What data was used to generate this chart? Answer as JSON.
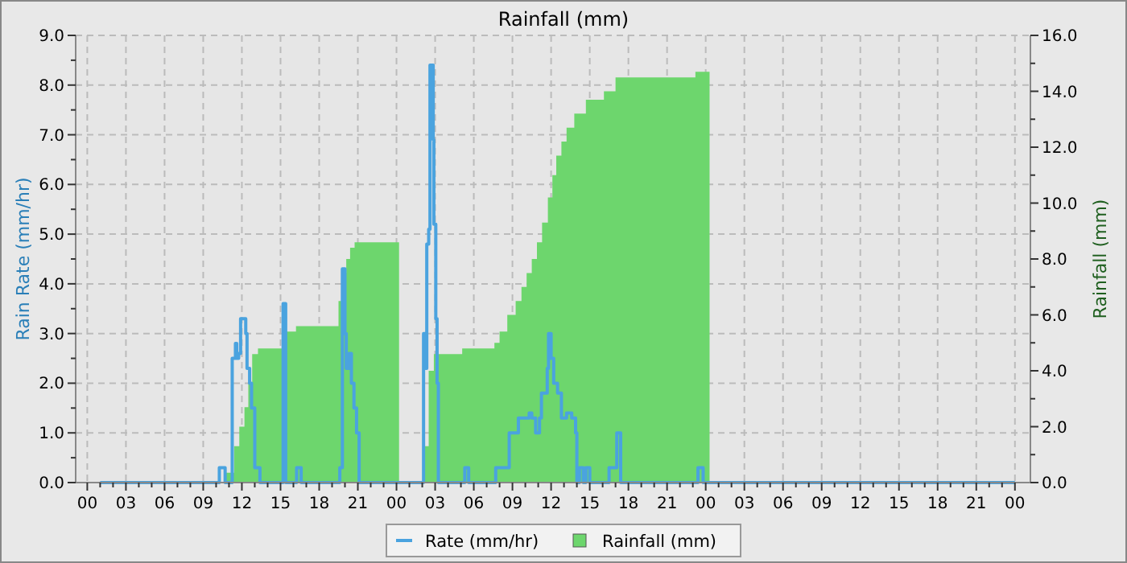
{
  "chart_data": {
    "type": "area",
    "title": "Rainfall (mm)",
    "ylabel": "Rain Rate (mm/hr)",
    "y2label": "Rainfall (mm)",
    "xlim": [
      -0.9,
      73.2
    ],
    "ylim": [
      0,
      9
    ],
    "y2lim": [
      0,
      16
    ],
    "xticks": [
      {
        "value": 0,
        "label": "00"
      },
      {
        "value": 1,
        "label": null
      },
      {
        "value": 2,
        "label": null
      },
      {
        "value": 3,
        "label": "03"
      },
      {
        "value": 4,
        "label": null
      },
      {
        "value": 5,
        "label": null
      },
      {
        "value": 6,
        "label": "06"
      },
      {
        "value": 7,
        "label": null
      },
      {
        "value": 8,
        "label": null
      },
      {
        "value": 9,
        "label": "09"
      },
      {
        "value": 10,
        "label": null
      },
      {
        "value": 11,
        "label": null
      },
      {
        "value": 12,
        "label": "12"
      },
      {
        "value": 13,
        "label": null
      },
      {
        "value": 14,
        "label": null
      },
      {
        "value": 15,
        "label": "15"
      },
      {
        "value": 16,
        "label": null
      },
      {
        "value": 17,
        "label": null
      },
      {
        "value": 18,
        "label": "18"
      },
      {
        "value": 19,
        "label": null
      },
      {
        "value": 20,
        "label": null
      },
      {
        "value": 21,
        "label": "21"
      },
      {
        "value": 22,
        "label": null
      },
      {
        "value": 23,
        "label": null
      },
      {
        "value": 24,
        "label": "00"
      },
      {
        "value": 25,
        "label": null
      },
      {
        "value": 26,
        "label": null
      },
      {
        "value": 27,
        "label": "03"
      },
      {
        "value": 28,
        "label": null
      },
      {
        "value": 29,
        "label": null
      },
      {
        "value": 30,
        "label": "06"
      },
      {
        "value": 31,
        "label": null
      },
      {
        "value": 32,
        "label": null
      },
      {
        "value": 33,
        "label": "09"
      },
      {
        "value": 34,
        "label": null
      },
      {
        "value": 35,
        "label": null
      },
      {
        "value": 36,
        "label": "12"
      },
      {
        "value": 37,
        "label": null
      },
      {
        "value": 38,
        "label": null
      },
      {
        "value": 39,
        "label": "15"
      },
      {
        "value": 40,
        "label": null
      },
      {
        "value": 41,
        "label": null
      },
      {
        "value": 42,
        "label": "18"
      },
      {
        "value": 43,
        "label": null
      },
      {
        "value": 44,
        "label": null
      },
      {
        "value": 45,
        "label": "21"
      },
      {
        "value": 46,
        "label": null
      },
      {
        "value": 47,
        "label": null
      },
      {
        "value": 48,
        "label": "00"
      },
      {
        "value": 49,
        "label": null
      },
      {
        "value": 50,
        "label": null
      },
      {
        "value": 51,
        "label": "03"
      },
      {
        "value": 52,
        "label": null
      },
      {
        "value": 53,
        "label": null
      },
      {
        "value": 54,
        "label": "06"
      },
      {
        "value": 55,
        "label": null
      },
      {
        "value": 56,
        "label": null
      },
      {
        "value": 57,
        "label": "09"
      },
      {
        "value": 58,
        "label": null
      },
      {
        "value": 59,
        "label": null
      },
      {
        "value": 60,
        "label": "12"
      },
      {
        "value": 61,
        "label": null
      },
      {
        "value": 62,
        "label": null
      },
      {
        "value": 63,
        "label": "15"
      },
      {
        "value": 64,
        "label": null
      },
      {
        "value": 65,
        "label": null
      },
      {
        "value": 66,
        "label": "18"
      },
      {
        "value": 67,
        "label": null
      },
      {
        "value": 68,
        "label": null
      },
      {
        "value": 69,
        "label": "21"
      },
      {
        "value": 70,
        "label": null
      },
      {
        "value": 71,
        "label": null
      },
      {
        "value": 72,
        "label": "00"
      }
    ],
    "yticks": [
      {
        "value": 0,
        "label": "0.0"
      },
      {
        "value": 0.5,
        "label": null
      },
      {
        "value": 1,
        "label": "1.0"
      },
      {
        "value": 1.5,
        "label": null
      },
      {
        "value": 2,
        "label": "2.0"
      },
      {
        "value": 2.5,
        "label": null
      },
      {
        "value": 3,
        "label": "3.0"
      },
      {
        "value": 3.5,
        "label": null
      },
      {
        "value": 4,
        "label": "4.0"
      },
      {
        "value": 4.5,
        "label": null
      },
      {
        "value": 5,
        "label": "5.0"
      },
      {
        "value": 5.5,
        "label": null
      },
      {
        "value": 6,
        "label": "6.0"
      },
      {
        "value": 6.5,
        "label": null
      },
      {
        "value": 7,
        "label": "7.0"
      },
      {
        "value": 7.5,
        "label": null
      },
      {
        "value": 8,
        "label": "8.0"
      },
      {
        "value": 8.5,
        "label": null
      },
      {
        "value": 9,
        "label": "9.0"
      }
    ],
    "y2ticks": [
      {
        "value": 0,
        "label": "0.0"
      },
      {
        "value": 1,
        "label": null
      },
      {
        "value": 2,
        "label": "2.0"
      },
      {
        "value": 3,
        "label": null
      },
      {
        "value": 4,
        "label": "4.0"
      },
      {
        "value": 5,
        "label": null
      },
      {
        "value": 6,
        "label": "6.0"
      },
      {
        "value": 7,
        "label": null
      },
      {
        "value": 8,
        "label": "8.0"
      },
      {
        "value": 9,
        "label": null
      },
      {
        "value": 10,
        "label": "10.0"
      },
      {
        "value": 11,
        "label": null
      },
      {
        "value": 12,
        "label": "12.0"
      },
      {
        "value": 13,
        "label": null
      },
      {
        "value": 14,
        "label": "14.0"
      },
      {
        "value": 15,
        "label": null
      },
      {
        "value": 16,
        "label": "16.0"
      }
    ],
    "grid": true,
    "legend": "bottom",
    "series": [
      {
        "name": "Rainfall (mm)",
        "axis": "y2",
        "color": "#6dd66d",
        "x": [
          1,
          10.75,
          11.4,
          11.8,
          12.2,
          12.5,
          12.8,
          13.25,
          15.1,
          16.2,
          19.5,
          19.8,
          20.1,
          20.4,
          20.75,
          24.2,
          26.2,
          26.5,
          26.9,
          29.1,
          31.6,
          32,
          32.6,
          33.25,
          33.7,
          34.1,
          34.5,
          34.9,
          35.3,
          35.75,
          36.1,
          36.4,
          36.8,
          37.2,
          37.8,
          38.7,
          40.1,
          41,
          47.2,
          48.3
        ],
        "values": [
          0,
          0.35,
          1.3,
          2.0,
          2.7,
          3.6,
          4.6,
          4.8,
          5.4,
          5.6,
          6.5,
          7.5,
          8.0,
          8.4,
          8.6,
          0,
          1.3,
          4.0,
          4.6,
          4.8,
          5.0,
          5.4,
          6.0,
          6.5,
          7.0,
          7.5,
          8.0,
          8.6,
          9.3,
          10.2,
          11.0,
          11.7,
          12.2,
          12.7,
          13.2,
          13.7,
          14.0,
          14.5,
          14.7,
          0
        ]
      },
      {
        "name": "Rate (mm/hr)",
        "type": "step",
        "color": "#4aa3df",
        "x": [
          1,
          10.25,
          10.7,
          11.25,
          11.5,
          11.6,
          11.75,
          11.9,
          12.3,
          12.4,
          12.6,
          12.75,
          13,
          13.4,
          15.2,
          15.4,
          16.25,
          16.6,
          19.6,
          19.8,
          20,
          20.1,
          20.3,
          20.5,
          20.7,
          20.9,
          21.1,
          26.1,
          26.25,
          26.35,
          26.5,
          26.6,
          26.85,
          26.9,
          27.05,
          27.15,
          27.25,
          29.3,
          29.6,
          31.7,
          32.75,
          33.46,
          34.3,
          34.5,
          34.8,
          35.1,
          35.25,
          35.7,
          35.8,
          36,
          36.2,
          36.5,
          36.8,
          37.2,
          37.6,
          37.9,
          38,
          38.2,
          38.5,
          38.7,
          39,
          40.5,
          41.1,
          41.4,
          47.4,
          47.8,
          72
        ],
        "values": [
          0,
          0.3,
          0,
          2.5,
          2.8,
          2.5,
          2.6,
          3.3,
          3.0,
          2.3,
          2.0,
          1.5,
          0.3,
          0,
          3.6,
          0,
          0.3,
          0,
          0.3,
          4.3,
          3.0,
          2.3,
          2.6,
          2.0,
          1.5,
          1.0,
          0,
          3.0,
          2.3,
          4.8,
          5.1,
          8.4,
          6.9,
          5.2,
          3.3,
          2.0,
          0,
          0.3,
          0,
          0.3,
          1.0,
          1.3,
          1.4,
          1.3,
          1.0,
          1.3,
          1.8,
          2.3,
          3.0,
          2.5,
          2.0,
          1.8,
          1.3,
          1.4,
          1.3,
          1.0,
          0,
          0.3,
          0,
          0.3,
          0,
          0.3,
          1.0,
          0,
          0.3,
          0,
          0
        ]
      }
    ]
  }
}
